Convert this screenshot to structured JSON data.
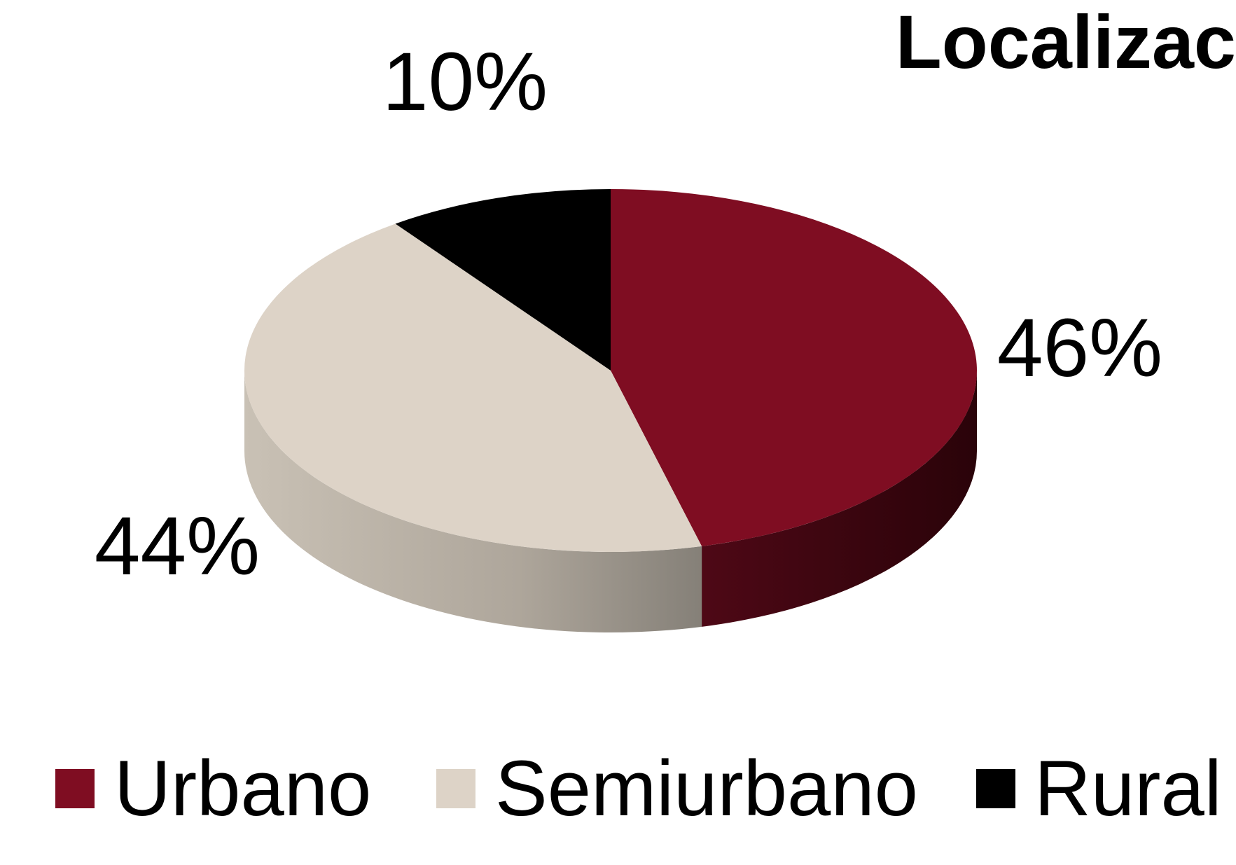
{
  "chart_data": {
    "type": "pie",
    "title": "Localizac",
    "categories": [
      "Urbano",
      "Semiurbano",
      "Rural"
    ],
    "values": [
      46,
      44,
      10
    ],
    "value_labels": [
      "46%",
      "44%",
      "10%"
    ],
    "colors": [
      "#7f0d22",
      "#ddd3c7",
      "#000000"
    ],
    "legend": "bottom"
  }
}
